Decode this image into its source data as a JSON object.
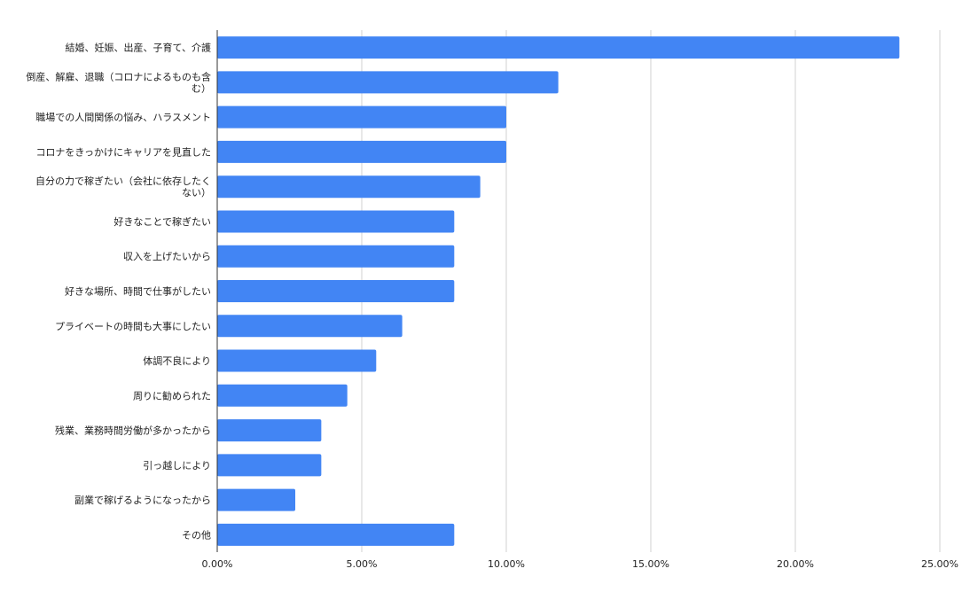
{
  "chart_data": {
    "type": "bar",
    "orientation": "horizontal",
    "title": "",
    "xlabel": "",
    "ylabel": "",
    "xlim": [
      0,
      25
    ],
    "x_ticks": [
      "0.00%",
      "5.00%",
      "10.00%",
      "15.00%",
      "20.00%",
      "25.00%"
    ],
    "grid": true,
    "legend": "none",
    "bar_color": "#4285f4",
    "categories": [
      [
        "結婚、妊娠、出産、子育て、介護"
      ],
      [
        "倒産、解雇、退職（コロナによるものも含",
        "む）"
      ],
      [
        "職場での人間関係の悩み、ハラスメント"
      ],
      [
        "コロナをきっかけにキャリアを見直した"
      ],
      [
        "自分の力で稼ぎたい（会社に依存したく",
        "ない）"
      ],
      [
        "好きなことで稼ぎたい"
      ],
      [
        "収入を上げたいから"
      ],
      [
        "好きな場所、時間で仕事がしたい"
      ],
      [
        "プライベートの時間も大事にしたい"
      ],
      [
        "体調不良により"
      ],
      [
        "周りに勧められた"
      ],
      [
        "残業、業務時間労働が多かったから"
      ],
      [
        "引っ越しにより"
      ],
      [
        "副業で稼げるようになったから"
      ],
      [
        "その他"
      ]
    ],
    "values": [
      23.6,
      11.8,
      10.0,
      10.0,
      9.1,
      8.2,
      8.2,
      8.2,
      6.4,
      5.5,
      4.5,
      3.6,
      3.6,
      2.7,
      8.2
    ]
  }
}
